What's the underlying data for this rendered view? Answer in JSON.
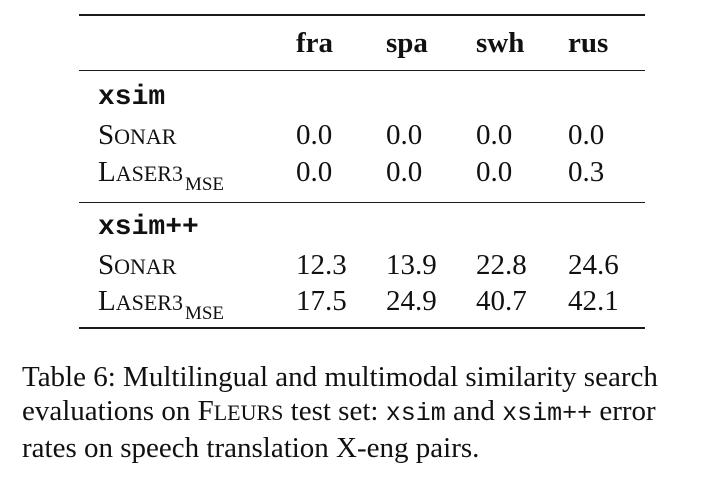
{
  "table": {
    "columns": [
      "fra",
      "spa",
      "swh",
      "rus"
    ],
    "sections": [
      {
        "title": "xsim",
        "rows": [
          {
            "model_first": "S",
            "model_rest": "ONAR",
            "subscript": "",
            "values": [
              "0.0",
              "0.0",
              "0.0",
              "0.0"
            ]
          },
          {
            "model_first": "L",
            "model_rest": "ASER3",
            "subscript": "MSE",
            "values": [
              "0.0",
              "0.0",
              "0.0",
              "0.3"
            ]
          }
        ]
      },
      {
        "title": "xsim++",
        "rows": [
          {
            "model_first": "S",
            "model_rest": "ONAR",
            "subscript": "",
            "values": [
              "12.3",
              "13.9",
              "22.8",
              "24.6"
            ]
          },
          {
            "model_first": "L",
            "model_rest": "ASER3",
            "subscript": "MSE",
            "values": [
              "17.5",
              "24.9",
              "40.7",
              "42.1"
            ]
          }
        ]
      }
    ]
  },
  "caption": {
    "part1": "Table 6: Multilingual and multimodal similarity search evaluations on ",
    "fleurs_first": "F",
    "fleurs_rest": "LEURS",
    "part2": " test set: ",
    "mono1": "xsim",
    "part3": " and ",
    "mono2": "xsim++",
    "part4": " error rates on speech translation X-eng pairs."
  }
}
